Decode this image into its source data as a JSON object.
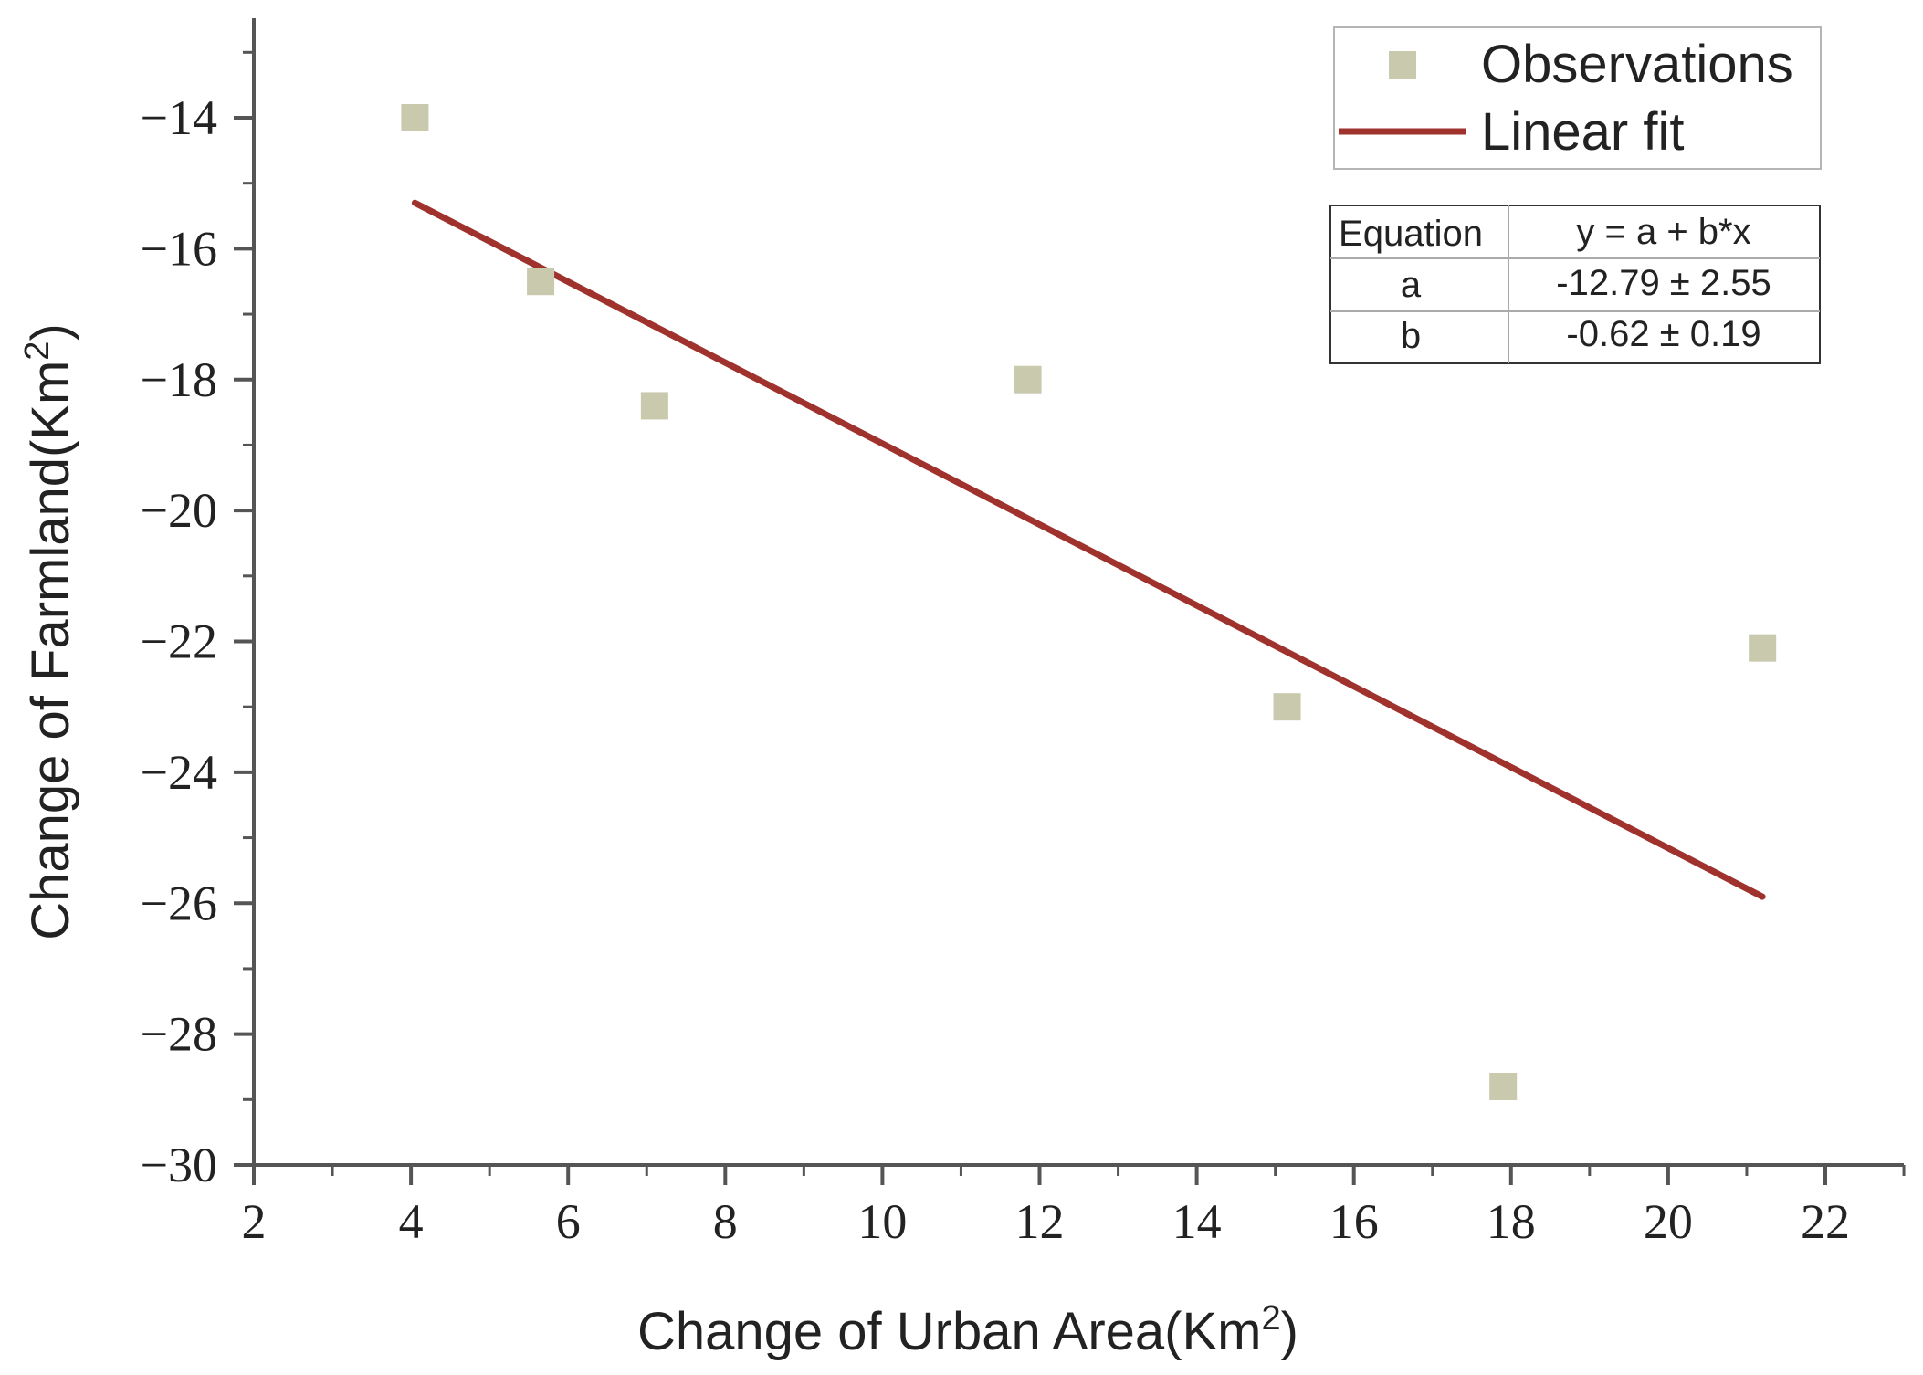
{
  "chart_data": {
    "type": "scatter",
    "xlabel": "Change of Urban Area(Km",
    "xlabel_sup": "2",
    "xlabel_close": ")",
    "ylabel": "Change of Farmland(Km",
    "ylabel_sup": "2",
    "ylabel_close": ")",
    "xlim": [
      2,
      23
    ],
    "ylim": [
      -30,
      -12.5
    ],
    "xticks": [
      2,
      4,
      6,
      8,
      10,
      12,
      14,
      16,
      18,
      20,
      22
    ],
    "xtick_labels": [
      "2",
      "4",
      "6",
      "8",
      "10",
      "12",
      "14",
      "16",
      "18",
      "20",
      "22"
    ],
    "yticks": [
      -14,
      -16,
      -18,
      -20,
      -22,
      -24,
      -26,
      -28,
      -30
    ],
    "ytick_labels": [
      "−14",
      "−16",
      "−18",
      "−20",
      "−22",
      "−24",
      "−26",
      "−28",
      "−30"
    ],
    "series": [
      {
        "name": "Observations",
        "kind": "scatter",
        "color": "#c8c9ad",
        "x": [
          4.05,
          5.65,
          7.1,
          11.85,
          15.15,
          17.9,
          21.2
        ],
        "y": [
          -14.0,
          -16.5,
          -18.4,
          -18.0,
          -23.0,
          -28.8,
          -22.1
        ]
      },
      {
        "name": "Linear fit",
        "kind": "line",
        "color": "#a0322d",
        "x": [
          4.05,
          21.2
        ],
        "y": [
          -15.3,
          -25.9
        ]
      }
    ],
    "legend": {
      "position": "top-right"
    },
    "fit_table": {
      "header": [
        "Equation",
        "y = a + b*x"
      ],
      "rows": [
        [
          "a",
          "-12.79 ± 2.55"
        ],
        [
          "b",
          "-0.62 ± 0.19"
        ]
      ]
    }
  }
}
